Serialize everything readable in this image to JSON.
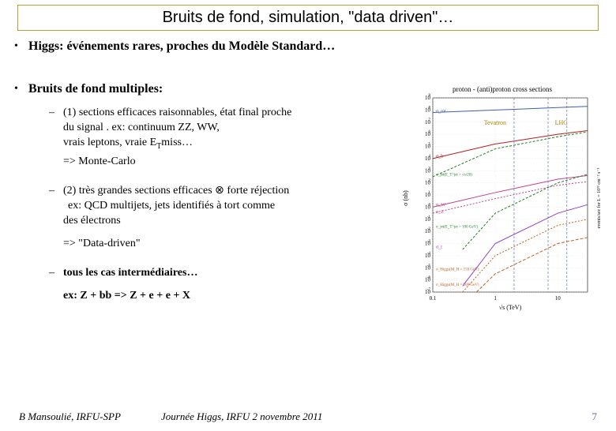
{
  "title": "Bruits de fond, simulation, \"data driven\"…",
  "bullet1": "Higgs: événements rares, proches du Modèle Standard…",
  "bullet2": "Bruits de fond multiples:",
  "sub1": {
    "l1": "(1) sections efficaces raisonnables, état final proche",
    "l2": "du signal . ex: continuum ZZ, WW,",
    "l3": "vrais leptons, vraie E",
    "l3sub": "T",
    "l3after": "miss…",
    "l4": "=> Monte-Carlo"
  },
  "sub2": {
    "l1": "(2) très grandes sections efficaces ⊗ forte réjection",
    "l2": "ex:  QCD multijets, jets identifiés à tort comme",
    "l3": "des électrons",
    "l4": "=> \"Data-driven\""
  },
  "sub3": {
    "l1": "tous les cas intermédiaires…",
    "l2": "ex: Z + bb => Z + e + e + X"
  },
  "footer": {
    "author": "B Mansoulié, IRFU-SPP",
    "event": "Journée Higgs, IRFU 2 novembre 2011",
    "page": "7"
  },
  "chart": {
    "title": "proton - (anti)proton cross sections",
    "xlabel": "√s  (TeV)",
    "ylabel_left": "σ (nb)",
    "ylabel_right": "events/sec for L = 10³³ cm⁻² s⁻¹",
    "labels": {
      "tevatron": "Tevatron",
      "lhc": "LHC",
      "sigma_tot": "σ_tot",
      "sigma_b": "σ_b",
      "sigma_jet20": "σ_jet(E_T^jet > √s/20)",
      "sigma_w": "σ_W",
      "sigma_z": "σ_Z",
      "sigma_jet100": "σ_jet(E_T^jet > 100 GeV)",
      "sigma_t": "σ_t",
      "sigma_h150": "σ_Higgs(M_H = 150 GeV)",
      "sigma_h500": "σ_Higgs(M_H = 500 GeV)"
    },
    "colors": {
      "axes": "#000000",
      "grid": "#d0d0d0",
      "tevatron_text": "#b08000",
      "lhc_text": "#b08000",
      "tot": "#4060a0",
      "b": "#b02020",
      "jet": "#208020",
      "wz": "#c04090",
      "t": "#9040c0",
      "higgs": "#c06020",
      "vline": "#4060a0"
    },
    "xlim": [
      0.1,
      30
    ],
    "ylim_exp": [
      -7,
      9
    ],
    "xticks": [
      0.1,
      1,
      10
    ],
    "yticks_exp": [
      -7,
      -6,
      -5,
      -4,
      -3,
      -2,
      -1,
      0,
      1,
      2,
      3,
      4,
      5,
      6,
      7,
      8,
      9
    ],
    "vlines_x": [
      2,
      7,
      14
    ],
    "curves": {
      "tot": [
        [
          0.1,
          7.8
        ],
        [
          1,
          8.0
        ],
        [
          10,
          8.2
        ],
        [
          30,
          8.3
        ]
      ],
      "b": [
        [
          0.1,
          4.0
        ],
        [
          1,
          5.2
        ],
        [
          10,
          6.0
        ],
        [
          30,
          6.3
        ]
      ],
      "jet20": [
        [
          0.1,
          2.5
        ],
        [
          1,
          4.8
        ],
        [
          10,
          5.8
        ],
        [
          30,
          6.2
        ]
      ],
      "w": [
        [
          0.1,
          0.0
        ],
        [
          1,
          1.2
        ],
        [
          10,
          2.3
        ],
        [
          30,
          2.6
        ]
      ],
      "z": [
        [
          0.1,
          -0.5
        ],
        [
          1,
          0.7
        ],
        [
          10,
          1.8
        ],
        [
          30,
          2.1
        ]
      ],
      "jet100": [
        [
          0.3,
          -3.5
        ],
        [
          1,
          -0.5
        ],
        [
          10,
          2.0
        ],
        [
          30,
          2.7
        ]
      ],
      "t": [
        [
          0.3,
          -6.5
        ],
        [
          1,
          -3.0
        ],
        [
          10,
          -0.5
        ],
        [
          30,
          0.2
        ]
      ],
      "h150": [
        [
          0.3,
          -7.0
        ],
        [
          1,
          -4.0
        ],
        [
          10,
          -1.5
        ],
        [
          30,
          -1.0
        ]
      ],
      "h500": [
        [
          0.5,
          -7.0
        ],
        [
          1,
          -5.5
        ],
        [
          10,
          -3.0
        ],
        [
          30,
          -2.5
        ]
      ]
    },
    "background": "#ffffff",
    "title_fontsize": 9,
    "label_fontsize": 8,
    "tick_fontsize": 7
  }
}
